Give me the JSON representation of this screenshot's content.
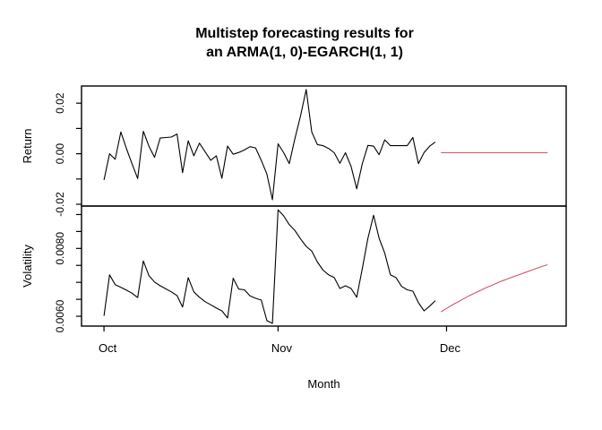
{
  "title": {
    "line1": "Multistep forecasting results for",
    "line2": "an ARMA(1, 0)-EGARCH(1, 1)"
  },
  "chart_data": {
    "type": "line",
    "title": "Multistep forecasting results for an ARMA(1, 0)-EGARCH(1, 1)",
    "xlabel": "Month",
    "x_unit": "days since Oct 1",
    "x_range_days": [
      -4,
      82.3
    ],
    "x_ticks": [
      {
        "day": 0,
        "label": "Oct"
      },
      {
        "day": 31,
        "label": "Nov"
      },
      {
        "day": 61,
        "label": "Dec"
      }
    ],
    "colors": {
      "observed": "#000000",
      "forecast": "#d4546b",
      "axis": "#000000",
      "background": "#ffffff"
    },
    "panels": [
      {
        "name": "return",
        "ylabel": "Return",
        "ylim": [
          -0.0207,
          0.0268
        ],
        "yticks": [
          {
            "v": -0.02,
            "label": "-0.02"
          },
          {
            "v": -0.01,
            "label": ""
          },
          {
            "v": 0.0,
            "label": "0.00"
          },
          {
            "v": 0.01,
            "label": ""
          },
          {
            "v": 0.02,
            "label": "0.02"
          }
        ],
        "series": [
          {
            "name": "observed-return",
            "color": "#000000",
            "x_start_day": 0,
            "values": [
              -0.0104,
              0.0,
              -0.0022,
              0.0086,
              0.002,
              -0.004,
              -0.0098,
              0.0089,
              0.003,
              -0.0014,
              0.0062,
              0.0064,
              0.0066,
              0.0078,
              -0.0075,
              0.0051,
              -0.0008,
              0.0042,
              0.0008,
              -0.0026,
              -0.0008,
              -0.0097,
              0.003,
              -0.0002,
              0.0005,
              0.0015,
              0.0028,
              0.0023,
              -0.0026,
              -0.008,
              -0.0182,
              0.0039,
              0.0004,
              -0.0039,
              0.006,
              0.015,
              0.0254,
              0.0086,
              0.0036,
              0.0032,
              0.0021,
              0.0004,
              -0.0038,
              0.0004,
              -0.005,
              -0.0139,
              -0.004,
              0.0033,
              0.003,
              -0.0004,
              0.0055,
              0.0032,
              0.0032,
              0.0032,
              0.0032,
              0.0064,
              -0.0039,
              0.0005,
              0.003,
              0.0046
            ]
          },
          {
            "name": "forecast-return",
            "color": "#d4546b",
            "x_start_day": 60,
            "values": [
              0.0004,
              0.0004,
              0.0004,
              0.0004,
              0.0004,
              0.0004,
              0.0004,
              0.0004,
              0.0004,
              0.0004,
              0.0004,
              0.0004,
              0.0004,
              0.0004,
              0.0004,
              0.0004,
              0.0004,
              0.0004,
              0.0004,
              0.0004
            ]
          }
        ]
      },
      {
        "name": "volatility",
        "ylabel": "Volatility",
        "ylim": [
          0.00571,
          0.00925
        ],
        "yticks": [
          {
            "v": 0.006,
            "label": "0.0060"
          },
          {
            "v": 0.0065,
            "label": ""
          },
          {
            "v": 0.007,
            "label": ""
          },
          {
            "v": 0.0075,
            "label": ""
          },
          {
            "v": 0.008,
            "label": "0.0080"
          },
          {
            "v": 0.0085,
            "label": ""
          },
          {
            "v": 0.009,
            "label": ""
          }
        ],
        "series": [
          {
            "name": "observed-volatility",
            "color": "#000000",
            "x_start_day": 0,
            "values": [
              0.00601,
              0.00722,
              0.00693,
              0.00685,
              0.00677,
              0.00668,
              0.00655,
              0.00763,
              0.0072,
              0.00701,
              0.0069,
              0.00681,
              0.00672,
              0.00661,
              0.00627,
              0.00714,
              0.00672,
              0.00656,
              0.00643,
              0.00634,
              0.00624,
              0.00616,
              0.00595,
              0.00712,
              0.0068,
              0.00678,
              0.0066,
              0.00653,
              0.00648,
              0.00587,
              0.00579,
              0.00914,
              0.00896,
              0.0087,
              0.00853,
              0.00828,
              0.00806,
              0.00792,
              0.0076,
              0.00736,
              0.00722,
              0.00714,
              0.00682,
              0.0069,
              0.00682,
              0.00656,
              0.0074,
              0.0083,
              0.00898,
              0.0083,
              0.00786,
              0.00722,
              0.00714,
              0.00688,
              0.00678,
              0.00674,
              0.0064,
              0.00616,
              0.0063,
              0.00646
            ]
          },
          {
            "name": "forecast-volatility",
            "color": "#d4546b",
            "x_start_day": 60,
            "values": [
              0.00613,
              0.00623,
              0.00633,
              0.00642,
              0.00651,
              0.0066,
              0.00668,
              0.00676,
              0.00684,
              0.00691,
              0.00698,
              0.00705,
              0.00711,
              0.00717,
              0.00723,
              0.00729,
              0.00735,
              0.00741,
              0.00747,
              0.00752
            ]
          }
        ]
      }
    ]
  }
}
